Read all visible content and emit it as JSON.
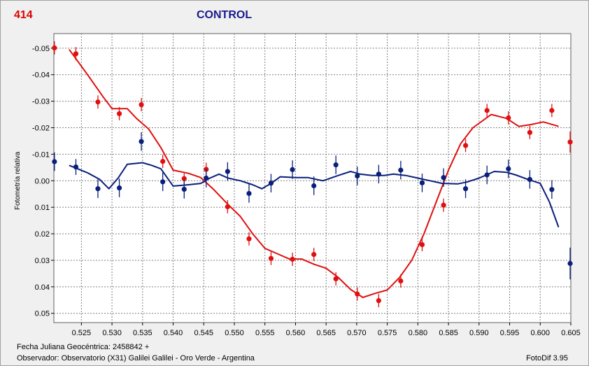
{
  "header": {
    "object_id": "414",
    "title": "CONTROL"
  },
  "footer": {
    "jd_line": "Fecha Juliana Geocéntrica: 2458842 +",
    "observer_line": "Observador: Observatorio (X31) Galilei Galilei - Oro Verde - Argentina",
    "software": "FotoDif 3.95"
  },
  "colors": {
    "red_series": "#e01010",
    "blue_series": "#0a1f7a",
    "title": "#1a1a8c",
    "grid": "#808080"
  },
  "chart_data": {
    "type": "scatter",
    "title": "CONTROL",
    "xlabel": "",
    "ylabel": "Fotometría relativa",
    "xlim": [
      0.5205,
      0.605
    ],
    "ylim": [
      -0.0555,
      0.0535
    ],
    "y_inverted": true,
    "grid": true,
    "x_ticks": [
      0.525,
      0.53,
      0.535,
      0.54,
      0.545,
      0.55,
      0.555,
      0.56,
      0.565,
      0.57,
      0.575,
      0.58,
      0.585,
      0.59,
      0.595,
      0.6,
      0.605
    ],
    "x_tick_labels": [
      "0.525",
      "0.530",
      "0.535",
      "0.540",
      "0.545",
      "0.550",
      "0.555",
      "0.560",
      "0.565",
      "0.570",
      "0.575",
      "0.580",
      "0.585",
      "0.590",
      "0.595",
      "0.600",
      "0.605"
    ],
    "y_ticks": [
      -0.05,
      -0.04,
      -0.03,
      -0.02,
      -0.01,
      0.0,
      0.01,
      0.02,
      0.03,
      0.04,
      0.05
    ],
    "y_tick_labels": [
      "-0.05",
      "-0.04",
      "-0.03",
      "-0.02",
      "-0.01",
      "0.00",
      "0.01",
      "0.02",
      "0.03",
      "0.04",
      "0.05"
    ],
    "series": [
      {
        "color": "#e01010",
        "points": [
          {
            "x": 0.5206,
            "y": -0.0501,
            "err": 0.0025
          },
          {
            "x": 0.5241,
            "y": -0.0479,
            "err": 0.0025
          },
          {
            "x": 0.5277,
            "y": -0.0297,
            "err": 0.0025
          },
          {
            "x": 0.5312,
            "y": -0.0253,
            "err": 0.0025
          },
          {
            "x": 0.5348,
            "y": -0.0287,
            "err": 0.0025
          },
          {
            "x": 0.5383,
            "y": -0.0073,
            "err": 0.0025
          },
          {
            "x": 0.5418,
            "y": -0.0008,
            "err": 0.0025
          },
          {
            "x": 0.5454,
            "y": -0.0043,
            "err": 0.0025
          },
          {
            "x": 0.5489,
            "y": 0.0098,
            "err": 0.0025
          },
          {
            "x": 0.5524,
            "y": 0.0219,
            "err": 0.0025
          },
          {
            "x": 0.556,
            "y": 0.0293,
            "err": 0.0025
          },
          {
            "x": 0.5595,
            "y": 0.0296,
            "err": 0.0025
          },
          {
            "x": 0.563,
            "y": 0.0278,
            "err": 0.0025
          },
          {
            "x": 0.5666,
            "y": 0.037,
            "err": 0.0025
          },
          {
            "x": 0.5701,
            "y": 0.0427,
            "err": 0.0025
          },
          {
            "x": 0.5736,
            "y": 0.0452,
            "err": 0.0025
          },
          {
            "x": 0.5772,
            "y": 0.0378,
            "err": 0.0025
          },
          {
            "x": 0.5807,
            "y": 0.0241,
            "err": 0.0025
          },
          {
            "x": 0.5842,
            "y": 0.0092,
            "err": 0.0025
          },
          {
            "x": 0.5878,
            "y": -0.0133,
            "err": 0.0025
          },
          {
            "x": 0.5913,
            "y": -0.0265,
            "err": 0.0025
          },
          {
            "x": 0.5948,
            "y": -0.0237,
            "err": 0.0025
          },
          {
            "x": 0.5983,
            "y": -0.0182,
            "err": 0.0025
          },
          {
            "x": 0.6019,
            "y": -0.0265,
            "err": 0.0025
          },
          {
            "x": 0.6054,
            "y": -0.0146,
            "err": 0.004
          }
        ],
        "fit": [
          [
            0.523,
            -0.0495
          ],
          [
            0.526,
            -0.04
          ],
          [
            0.5285,
            -0.0318
          ],
          [
            0.53,
            -0.0272
          ],
          [
            0.5325,
            -0.0272
          ],
          [
            0.534,
            -0.0235
          ],
          [
            0.536,
            -0.0195
          ],
          [
            0.538,
            -0.0125
          ],
          [
            0.54,
            -0.004
          ],
          [
            0.5425,
            -0.0028
          ],
          [
            0.5445,
            -0.0012
          ],
          [
            0.5465,
            0.003
          ],
          [
            0.549,
            0.009
          ],
          [
            0.551,
            0.0135
          ],
          [
            0.553,
            0.02
          ],
          [
            0.555,
            0.0255
          ],
          [
            0.557,
            0.0275
          ],
          [
            0.559,
            0.0295
          ],
          [
            0.561,
            0.0295
          ],
          [
            0.563,
            0.0315
          ],
          [
            0.565,
            0.033
          ],
          [
            0.567,
            0.0365
          ],
          [
            0.569,
            0.041
          ],
          [
            0.571,
            0.044
          ],
          [
            0.573,
            0.0425
          ],
          [
            0.575,
            0.0412
          ],
          [
            0.577,
            0.0365
          ],
          [
            0.579,
            0.03
          ],
          [
            0.581,
            0.02
          ],
          [
            0.583,
            0.008
          ],
          [
            0.585,
            -0.004
          ],
          [
            0.587,
            -0.014
          ],
          [
            0.589,
            -0.02
          ],
          [
            0.592,
            -0.025
          ],
          [
            0.5945,
            -0.0235
          ],
          [
            0.5965,
            -0.0205
          ],
          [
            0.5985,
            -0.0212
          ],
          [
            0.6005,
            -0.0222
          ],
          [
            0.603,
            -0.0205
          ]
        ]
      },
      {
        "color": "#0a1f7a",
        "points": [
          {
            "x": 0.5206,
            "y": -0.0072,
            "err": 0.0035
          },
          {
            "x": 0.5241,
            "y": -0.0052,
            "err": 0.003
          },
          {
            "x": 0.5277,
            "y": 0.003,
            "err": 0.0035
          },
          {
            "x": 0.5312,
            "y": 0.0027,
            "err": 0.0035
          },
          {
            "x": 0.5348,
            "y": -0.0148,
            "err": 0.0035
          },
          {
            "x": 0.5383,
            "y": 0.0004,
            "err": 0.0035
          },
          {
            "x": 0.5418,
            "y": 0.0032,
            "err": 0.0035
          },
          {
            "x": 0.5454,
            "y": -0.001,
            "err": 0.0035
          },
          {
            "x": 0.5489,
            "y": -0.0035,
            "err": 0.0035
          },
          {
            "x": 0.5524,
            "y": 0.0048,
            "err": 0.0035
          },
          {
            "x": 0.556,
            "y": 0.0009,
            "err": 0.0035
          },
          {
            "x": 0.5595,
            "y": -0.0042,
            "err": 0.0035
          },
          {
            "x": 0.563,
            "y": 0.0019,
            "err": 0.0035
          },
          {
            "x": 0.5666,
            "y": -0.006,
            "err": 0.0035
          },
          {
            "x": 0.5701,
            "y": -0.0018,
            "err": 0.0035
          },
          {
            "x": 0.5736,
            "y": -0.0025,
            "err": 0.0035
          },
          {
            "x": 0.5772,
            "y": -0.004,
            "err": 0.0035
          },
          {
            "x": 0.5807,
            "y": 0.0008,
            "err": 0.0035
          },
          {
            "x": 0.5842,
            "y": -0.0012,
            "err": 0.0035
          },
          {
            "x": 0.5878,
            "y": 0.003,
            "err": 0.0035
          },
          {
            "x": 0.5913,
            "y": -0.0022,
            "err": 0.0035
          },
          {
            "x": 0.5948,
            "y": -0.0045,
            "err": 0.0035
          },
          {
            "x": 0.5983,
            "y": -0.0005,
            "err": 0.0035
          },
          {
            "x": 0.6019,
            "y": 0.0033,
            "err": 0.0035
          },
          {
            "x": 0.6054,
            "y": 0.0312,
            "err": 0.006
          }
        ],
        "fit": [
          [
            0.523,
            -0.0058
          ],
          [
            0.526,
            -0.003
          ],
          [
            0.528,
            -0.0005
          ],
          [
            0.5295,
            0.003
          ],
          [
            0.531,
            -0.001
          ],
          [
            0.5325,
            -0.0062
          ],
          [
            0.535,
            -0.0068
          ],
          [
            0.5365,
            -0.0058
          ],
          [
            0.538,
            -0.0045
          ],
          [
            0.54,
            0.002
          ],
          [
            0.5425,
            0.0015
          ],
          [
            0.5445,
            0.001
          ],
          [
            0.546,
            -0.001
          ],
          [
            0.5475,
            -0.0025
          ],
          [
            0.549,
            -0.001
          ],
          [
            0.551,
            0.0
          ],
          [
            0.553,
            0.0015
          ],
          [
            0.5545,
            0.003
          ],
          [
            0.556,
            0.001
          ],
          [
            0.5575,
            -0.0015
          ],
          [
            0.56,
            -0.0012
          ],
          [
            0.562,
            -0.0012
          ],
          [
            0.5645,
            0.0
          ],
          [
            0.567,
            -0.002
          ],
          [
            0.569,
            -0.0035
          ],
          [
            0.5705,
            -0.0025
          ],
          [
            0.5725,
            -0.002
          ],
          [
            0.5745,
            -0.002
          ],
          [
            0.576,
            -0.0025
          ],
          [
            0.578,
            -0.002
          ],
          [
            0.58,
            -0.001
          ],
          [
            0.582,
            0.0
          ],
          [
            0.584,
            0.001
          ],
          [
            0.5865,
            0.0012
          ],
          [
            0.588,
            0.0005
          ],
          [
            0.59,
            -0.001
          ],
          [
            0.5925,
            -0.0035
          ],
          [
            0.5945,
            -0.0032
          ],
          [
            0.596,
            -0.0022
          ],
          [
            0.598,
            -0.0005
          ],
          [
            0.6,
            0.001
          ],
          [
            0.6015,
            0.008
          ],
          [
            0.603,
            0.0175
          ]
        ]
      }
    ]
  }
}
